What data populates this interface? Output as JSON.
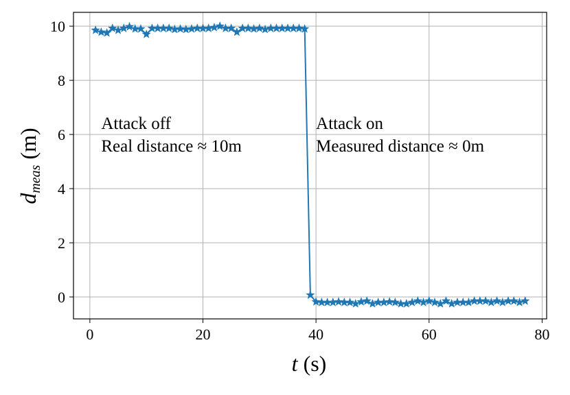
{
  "chart_data": {
    "type": "line",
    "xlabel": {
      "symbol": "t",
      "unit": "(s)"
    },
    "ylabel": {
      "symbol": "d",
      "sub": "meas",
      "unit": "(m)"
    },
    "x": [
      1,
      2,
      3,
      4,
      5,
      6,
      7,
      8,
      9,
      10,
      11,
      12,
      13,
      14,
      15,
      16,
      17,
      18,
      19,
      20,
      21,
      22,
      23,
      24,
      25,
      26,
      27,
      28,
      29,
      30,
      31,
      32,
      33,
      34,
      35,
      36,
      37,
      38,
      39,
      40,
      41,
      42,
      43,
      44,
      45,
      46,
      47,
      48,
      49,
      50,
      51,
      52,
      53,
      54,
      55,
      56,
      57,
      58,
      59,
      60,
      61,
      62,
      63,
      64,
      65,
      66,
      67,
      68,
      69,
      70,
      71,
      72,
      73,
      74,
      75,
      76,
      77
    ],
    "series": [
      {
        "name": "d_meas",
        "color": "#1f77b4",
        "values": [
          9.85,
          9.78,
          9.75,
          9.92,
          9.85,
          9.92,
          9.98,
          9.9,
          9.9,
          9.7,
          9.92,
          9.92,
          9.92,
          9.92,
          9.88,
          9.9,
          9.88,
          9.9,
          9.92,
          9.92,
          9.92,
          9.95,
          10.0,
          9.92,
          9.92,
          9.78,
          9.92,
          9.92,
          9.9,
          9.92,
          9.88,
          9.92,
          9.92,
          9.92,
          9.92,
          9.92,
          9.92,
          9.9,
          0.07,
          -0.18,
          -0.2,
          -0.2,
          -0.2,
          -0.18,
          -0.2,
          -0.2,
          -0.25,
          -0.18,
          -0.15,
          -0.25,
          -0.2,
          -0.2,
          -0.18,
          -0.2,
          -0.25,
          -0.25,
          -0.2,
          -0.15,
          -0.2,
          -0.15,
          -0.2,
          -0.25,
          -0.15,
          -0.25,
          -0.2,
          -0.2,
          -0.2,
          -0.15,
          -0.15,
          -0.15,
          -0.2,
          -0.15,
          -0.2,
          -0.15,
          -0.15,
          -0.2,
          -0.15
        ]
      }
    ],
    "xlim": [
      -2.9,
      80.8
    ],
    "ylim": [
      -0.81,
      10.51
    ],
    "xticks": [
      0,
      20,
      40,
      60,
      80
    ],
    "yticks": [
      0,
      2,
      4,
      6,
      8,
      10
    ],
    "grid": true,
    "annotations": [
      {
        "x": 2,
        "y": 6.2,
        "lines": [
          "Attack off",
          "Real distance ≈ 10m"
        ]
      },
      {
        "x": 40,
        "y": 6.2,
        "lines": [
          "Attack on",
          "Measured distance ≈ 0m"
        ]
      }
    ]
  }
}
